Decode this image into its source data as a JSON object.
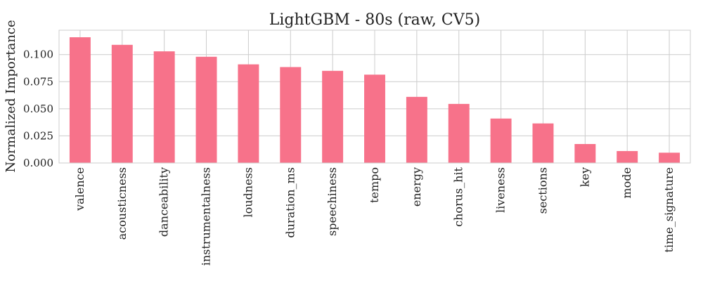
{
  "chart_data": {
    "type": "bar",
    "title": "LightGBM - 80s (raw, CV5)",
    "xlabel": "",
    "ylabel": "Normalized Importance",
    "categories": [
      "valence",
      "acousticness",
      "danceability",
      "instrumentalness",
      "loudness",
      "duration_ms",
      "speechiness",
      "tempo",
      "energy",
      "chorus_hit",
      "liveness",
      "sections",
      "key",
      "mode",
      "time_signature"
    ],
    "values": [
      0.116,
      0.109,
      0.103,
      0.098,
      0.091,
      0.0885,
      0.085,
      0.0815,
      0.061,
      0.0545,
      0.041,
      0.0365,
      0.0175,
      0.011,
      0.0095
    ],
    "ylim": [
      0,
      0.1225
    ],
    "yticks": [
      0.0,
      0.025,
      0.05,
      0.075,
      0.1
    ],
    "ytick_labels": [
      "0.000",
      "0.025",
      "0.050",
      "0.075",
      "0.100"
    ],
    "grid": true,
    "legend": "none",
    "colors": {
      "bar": "#f7728a",
      "grid": "#cccccc",
      "frame": "#cccccc",
      "text": "#222222"
    }
  }
}
